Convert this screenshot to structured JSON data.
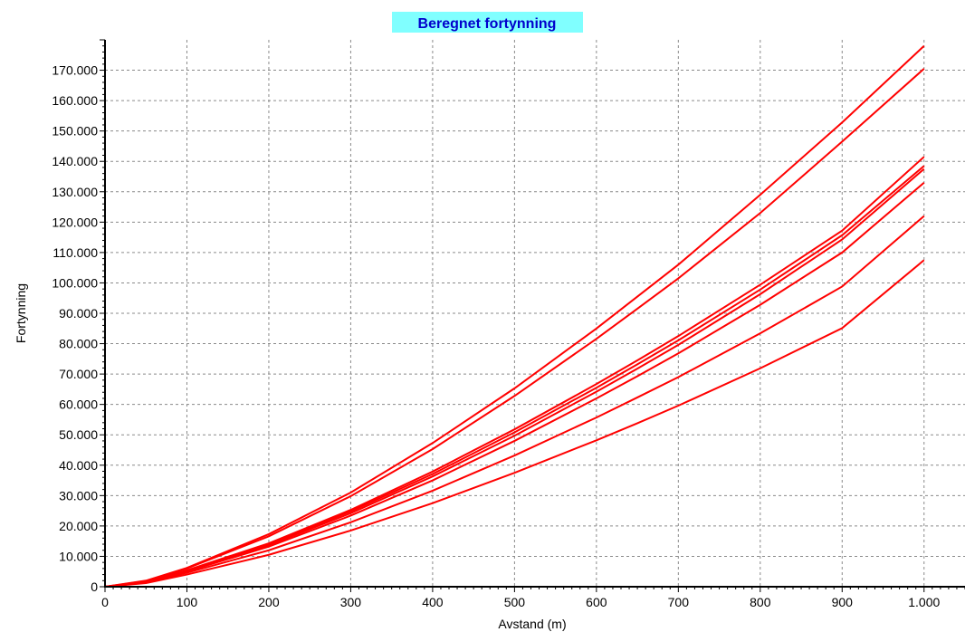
{
  "chart_data": {
    "type": "line",
    "title": "Beregnet fortynning",
    "xlabel": "Avstand (m)",
    "ylabel": "Fortynning",
    "xlim": [
      0,
      1050
    ],
    "ylim": [
      0,
      180000
    ],
    "grid": true,
    "x_ticks": [
      0,
      100,
      200,
      300,
      400,
      500,
      600,
      700,
      800,
      900,
      1000
    ],
    "x_tick_labels": [
      "0",
      "100",
      "200",
      "300",
      "400",
      "500",
      "600",
      "700",
      "800",
      "900",
      "1.000"
    ],
    "y_ticks": [
      0,
      10000,
      20000,
      30000,
      40000,
      50000,
      60000,
      70000,
      80000,
      90000,
      100000,
      110000,
      120000,
      130000,
      140000,
      150000,
      160000,
      170000
    ],
    "y_tick_labels": [
      "0",
      "10.000",
      "20.000",
      "30.000",
      "40.000",
      "50.000",
      "60.000",
      "70.000",
      "80.000",
      "90.000",
      "100.000",
      "110.000",
      "120.000",
      "130.000",
      "140.000",
      "150.000",
      "160.000",
      "170.000"
    ],
    "x": [
      0,
      50,
      100,
      200,
      300,
      400,
      500,
      600,
      650,
      700,
      800,
      900,
      1000
    ],
    "series": [
      {
        "values": [
          0,
          2000,
          6200,
          17300,
          31000,
          47300,
          65300,
          85000,
          95500,
          106000,
          129000,
          152800,
          178000
        ]
      },
      {
        "values": [
          0,
          1900,
          6000,
          16600,
          29800,
          45300,
          62800,
          81600,
          91500,
          101500,
          123000,
          146500,
          170500
        ]
      },
      {
        "values": [
          0,
          1600,
          5400,
          14300,
          25300,
          37900,
          51800,
          66700,
          74500,
          82500,
          99400,
          117200,
          141500
        ]
      },
      {
        "values": [
          0,
          1550,
          5300,
          14000,
          24800,
          37100,
          50800,
          65500,
          73200,
          81100,
          97800,
          115700,
          138500
        ]
      },
      {
        "values": [
          0,
          1500,
          5200,
          13700,
          24200,
          36300,
          49700,
          64200,
          71800,
          79600,
          96300,
          114300,
          137500
        ]
      },
      {
        "values": [
          0,
          1450,
          5000,
          13200,
          23400,
          35000,
          48000,
          62000,
          69300,
          76800,
          92800,
          110000,
          133000
        ]
      },
      {
        "values": [
          0,
          1350,
          4600,
          12000,
          21200,
          31600,
          43200,
          55700,
          62300,
          69000,
          83400,
          98800,
          122000
        ]
      },
      {
        "values": [
          0,
          1200,
          4000,
          10500,
          18500,
          27500,
          37500,
          48200,
          53800,
          59600,
          71900,
          85100,
          107500
        ]
      }
    ],
    "line_color": "#ff0000",
    "title_bg_color": "#80ffff",
    "title_color": "#0000cc"
  }
}
